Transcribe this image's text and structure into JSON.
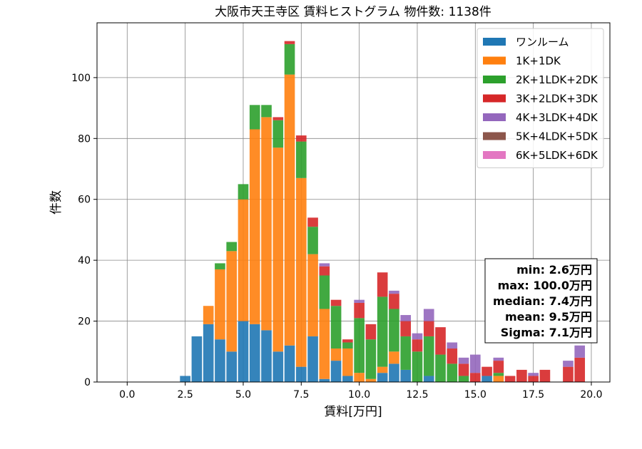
{
  "chart_data": {
    "type": "bar",
    "stacked": true,
    "title": "大阪市天王寺区 賃料ヒストグラム  物件数: 1138件",
    "xlabel": "賃料[万円]",
    "ylabel": "件数",
    "xlim": [
      -1.3,
      20.8
    ],
    "ylim": [
      0,
      118
    ],
    "xticks": [
      0.0,
      2.5,
      5.0,
      7.5,
      10.0,
      12.5,
      15.0,
      17.5,
      20.0
    ],
    "xtick_labels": [
      "0.0",
      "2.5",
      "5.0",
      "7.5",
      "10.0",
      "12.5",
      "15.0",
      "17.5",
      "20.0"
    ],
    "yticks": [
      0,
      20,
      40,
      60,
      80,
      100
    ],
    "ytick_labels": [
      "0",
      "20",
      "40",
      "60",
      "80",
      "100"
    ],
    "grid": true,
    "legend_position": "top-right",
    "bar_width": 0.45,
    "x": [
      2.5,
      3.0,
      3.5,
      4.0,
      4.5,
      5.0,
      5.5,
      6.0,
      6.5,
      7.0,
      7.5,
      8.0,
      8.5,
      9.0,
      9.5,
      10.0,
      10.5,
      11.0,
      11.5,
      12.0,
      12.5,
      13.0,
      13.5,
      14.0,
      14.5,
      15.0,
      15.5,
      16.0,
      16.5,
      17.0,
      17.5,
      18.0,
      18.5,
      19.0,
      19.5,
      20.0
    ],
    "series": [
      {
        "name": "ワンルーム",
        "color": "#1f77b4",
        "values": [
          2,
          15,
          19,
          14,
          10,
          20,
          19,
          17,
          10,
          12,
          5,
          15,
          1,
          7,
          2,
          0,
          0,
          3,
          6,
          4,
          0,
          2,
          0,
          0,
          0,
          0,
          2,
          0,
          0,
          0,
          0,
          0,
          0,
          0,
          0,
          0
        ]
      },
      {
        "name": "1K+1DK",
        "color": "#ff7f0e",
        "values": [
          0,
          0,
          6,
          23,
          33,
          40,
          64,
          70,
          67,
          89,
          62,
          27,
          23,
          4,
          9,
          3,
          1,
          2,
          4,
          0,
          0,
          0,
          0,
          0,
          0,
          0,
          0,
          2,
          0,
          0,
          0,
          0,
          0,
          0,
          0,
          0
        ]
      },
      {
        "name": "2K+1LDK+2DK",
        "color": "#2ca02c",
        "values": [
          0,
          0,
          0,
          2,
          3,
          5,
          8,
          4,
          9,
          10,
          12,
          9,
          11,
          14,
          2,
          18,
          13,
          23,
          14,
          11,
          10,
          13,
          9,
          6,
          2,
          0,
          0,
          1,
          0,
          0,
          0,
          0,
          0,
          0,
          0,
          0
        ]
      },
      {
        "name": "3K+2LDK+3DK",
        "color": "#d62728",
        "values": [
          0,
          0,
          0,
          0,
          0,
          0,
          0,
          0,
          1,
          1,
          2,
          3,
          3,
          2,
          1,
          5,
          5,
          8,
          5,
          5,
          4,
          5,
          9,
          5,
          4,
          3,
          3,
          4,
          2,
          4,
          2,
          4,
          0,
          5,
          8,
          0
        ]
      },
      {
        "name": "4K+3LDK+4DK",
        "color": "#9467bd",
        "values": [
          0,
          0,
          0,
          0,
          0,
          0,
          0,
          0,
          0,
          0,
          0,
          0,
          1,
          0,
          0,
          1,
          0,
          0,
          1,
          2,
          2,
          4,
          0,
          2,
          2,
          6,
          0,
          1,
          0,
          0,
          1,
          0,
          0,
          2,
          4,
          0
        ]
      },
      {
        "name": "5K+4LDK+5DK",
        "color": "#8c564b",
        "values": [
          0,
          0,
          0,
          0,
          0,
          0,
          0,
          0,
          0,
          0,
          0,
          0,
          0,
          0,
          0,
          0,
          0,
          0,
          0,
          0,
          0,
          0,
          0,
          0,
          0,
          0,
          0,
          0,
          0,
          0,
          0,
          0,
          0,
          0,
          0,
          0
        ]
      },
      {
        "name": "6K+5LDK+6DK",
        "color": "#e377c2",
        "values": [
          0,
          0,
          0,
          0,
          0,
          0,
          0,
          0,
          0,
          0,
          0,
          0,
          0,
          0,
          0,
          0,
          0,
          0,
          0,
          0,
          0,
          0,
          0,
          0,
          0,
          0,
          0,
          0,
          0,
          0,
          0,
          0,
          0,
          0,
          0,
          0
        ]
      }
    ],
    "stats_box": [
      "min: 2.6万円",
      "max: 100.0万円",
      "median: 7.4万円",
      "mean: 9.5万円",
      "Sigma: 7.1万円"
    ]
  }
}
